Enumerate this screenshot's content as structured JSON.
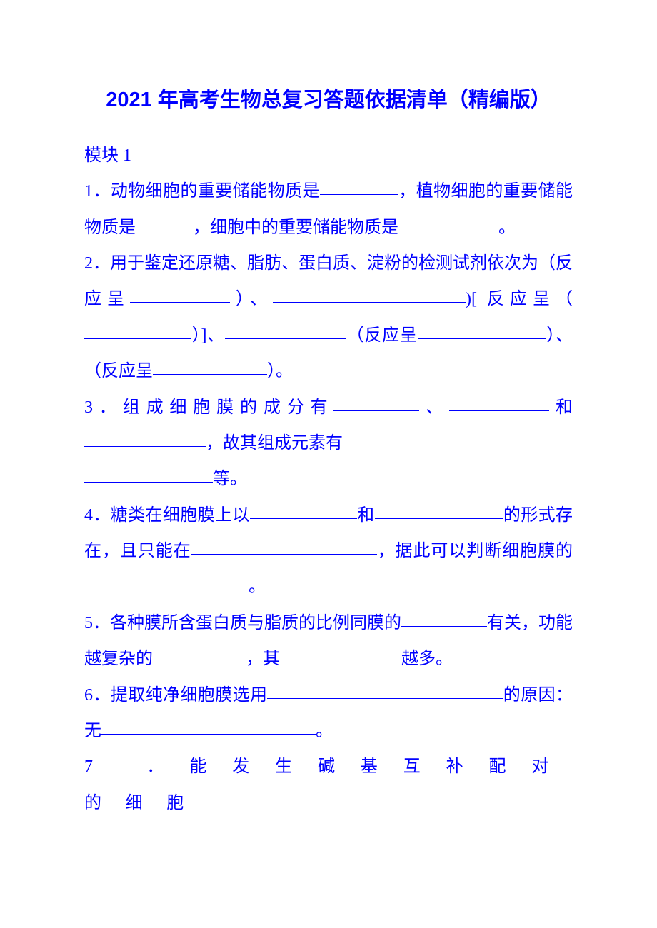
{
  "colors": {
    "text": "#0000ff",
    "rule": "#000000",
    "background": "#ffffff"
  },
  "typography": {
    "title_fontsize": 29,
    "body_fontsize": 24,
    "title_family": "SimHei",
    "body_family": "SimSun",
    "line_height": 2.1
  },
  "title": "2021 年高考生物总复习答题依据清单（精编版）",
  "section_label": "模块 1",
  "questions": {
    "q1": {
      "p1": "1．动物细胞的重要储能物质是",
      "p2": "，植物细胞的重要储能物质是",
      "p3": "，细胞中的重要储能物质是",
      "p4": "。"
    },
    "q2": {
      "p1": "2．用于鉴定还原糖、脂肪、蛋白质、淀粉的检测试剂依次为（反应呈",
      "p2": "）、",
      "p3": ")[ 反应呈（",
      "p4": "）]、",
      "p5": "（反应呈",
      "p6": "）、（反应呈",
      "p7": "）。"
    },
    "q3": {
      "p1": "3．组成细胞膜的成分有",
      "p2": "、",
      "p3": "和",
      "p4": "，故其组成元素有",
      "p5": "等。"
    },
    "q4": {
      "p1": "4．糖类在细胞膜上以",
      "p2": "和",
      "p3": "的形式存在，且只能在",
      "p4": "，据此可以判断细胞膜的",
      "p5": "。"
    },
    "q5": {
      "p1": "5．各种膜所含蛋白质与脂质的比例同膜的",
      "p2": "有关，功能越复杂的",
      "p3": "，其",
      "p4": "越多。"
    },
    "q6": {
      "p1": "6．提取纯净细胞膜选用",
      "p2": "的原因：无",
      "p3": "。"
    },
    "q7": {
      "p1": "7 ．能发生碱基互补配对的细胞"
    }
  },
  "blank_widths": {
    "q1b1": 110,
    "q1b2": 80,
    "q1b3": 140,
    "q2b1": 140,
    "q2b2": 270,
    "q2b3": 150,
    "q2b4": 170,
    "q2b5": 180,
    "q2b6": 160,
    "q3b1": 120,
    "q3b2": 140,
    "q3b3": 170,
    "q3b4": 180,
    "q4b1": 150,
    "q4b2": 180,
    "q4b3": 260,
    "q4b4": 230,
    "q5b1": 120,
    "q5b2": 130,
    "q5b3": 170,
    "q6b1": 330,
    "q6b2": 300
  }
}
